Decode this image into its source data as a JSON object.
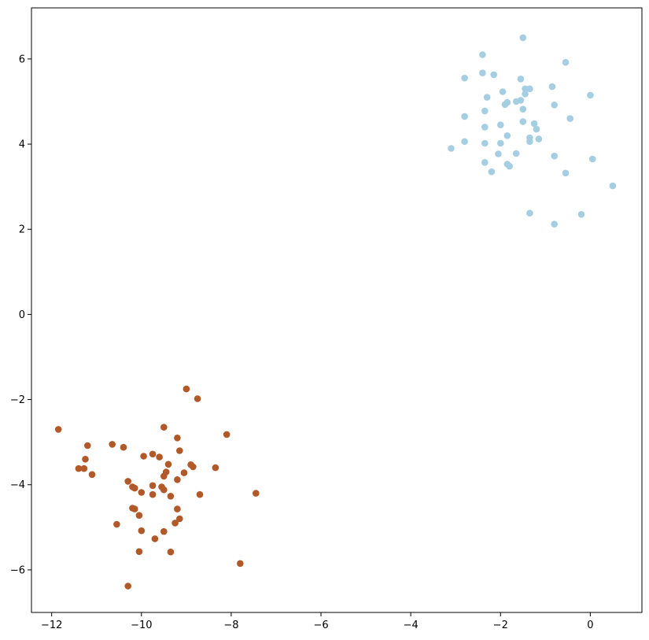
{
  "chart_data": {
    "type": "scatter",
    "title": "",
    "xlabel": "",
    "ylabel": "",
    "xlim": [
      -12.45,
      1.15
    ],
    "ylim": [
      -7.0,
      7.2
    ],
    "grid": false,
    "xticks": [
      -12,
      -10,
      -8,
      -6,
      -4,
      -2,
      0
    ],
    "yticks": [
      -6,
      -4,
      -2,
      0,
      2,
      4,
      6
    ],
    "series": [
      {
        "color": "#a6cee3",
        "points": [
          [
            -1.5,
            6.5
          ],
          [
            -2.4,
            6.1
          ],
          [
            -0.55,
            5.92
          ],
          [
            -2.4,
            5.67
          ],
          [
            -2.15,
            5.63
          ],
          [
            -2.8,
            5.55
          ],
          [
            -1.55,
            5.53
          ],
          [
            -1.45,
            5.3
          ],
          [
            -1.35,
            5.3
          ],
          [
            -0.85,
            5.35
          ],
          [
            -1.95,
            5.23
          ],
          [
            -1.45,
            5.18
          ],
          [
            -2.3,
            5.1
          ],
          [
            -1.55,
            5.03
          ],
          [
            -1.65,
            5.0
          ],
          [
            -1.85,
            4.98
          ],
          [
            -1.9,
            4.93
          ],
          [
            -0.8,
            4.92
          ],
          [
            0.0,
            5.15
          ],
          [
            -1.5,
            4.82
          ],
          [
            -2.35,
            4.78
          ],
          [
            -2.8,
            4.65
          ],
          [
            -1.5,
            4.53
          ],
          [
            -0.45,
            4.6
          ],
          [
            -1.25,
            4.48
          ],
          [
            -1.2,
            4.35
          ],
          [
            -2.35,
            4.4
          ],
          [
            -2.0,
            4.45
          ],
          [
            -1.85,
            4.2
          ],
          [
            -1.35,
            4.15
          ],
          [
            -1.15,
            4.12
          ],
          [
            -1.35,
            4.06
          ],
          [
            -2.8,
            4.06
          ],
          [
            -2.35,
            4.02
          ],
          [
            -2.0,
            4.02
          ],
          [
            -3.1,
            3.9
          ],
          [
            -2.05,
            3.77
          ],
          [
            -1.65,
            3.78
          ],
          [
            -0.8,
            3.72
          ],
          [
            0.05,
            3.65
          ],
          [
            -2.35,
            3.57
          ],
          [
            -1.85,
            3.53
          ],
          [
            -1.8,
            3.48
          ],
          [
            -2.2,
            3.35
          ],
          [
            -0.55,
            3.32
          ],
          [
            0.5,
            3.02
          ],
          [
            -1.35,
            2.38
          ],
          [
            -0.2,
            2.35
          ],
          [
            -0.8,
            2.12
          ]
        ]
      },
      {
        "color": "#b15928",
        "points": [
          [
            -9.0,
            -1.75
          ],
          [
            -8.75,
            -1.98
          ],
          [
            -11.85,
            -2.7
          ],
          [
            -9.5,
            -2.65
          ],
          [
            -8.1,
            -2.82
          ],
          [
            -9.2,
            -2.9
          ],
          [
            -10.65,
            -3.05
          ],
          [
            -11.2,
            -3.08
          ],
          [
            -10.4,
            -3.12
          ],
          [
            -9.15,
            -3.2
          ],
          [
            -9.75,
            -3.28
          ],
          [
            -9.95,
            -3.33
          ],
          [
            -9.6,
            -3.35
          ],
          [
            -11.25,
            -3.4
          ],
          [
            -9.4,
            -3.52
          ],
          [
            -8.9,
            -3.53
          ],
          [
            -8.85,
            -3.58
          ],
          [
            -11.4,
            -3.62
          ],
          [
            -11.28,
            -3.62
          ],
          [
            -8.35,
            -3.6
          ],
          [
            -9.45,
            -3.7
          ],
          [
            -9.05,
            -3.72
          ],
          [
            -11.1,
            -3.76
          ],
          [
            -9.5,
            -3.8
          ],
          [
            -9.2,
            -3.88
          ],
          [
            -10.3,
            -3.92
          ],
          [
            -9.75,
            -4.02
          ],
          [
            -9.55,
            -4.05
          ],
          [
            -10.2,
            -4.05
          ],
          [
            -10.15,
            -4.08
          ],
          [
            -9.5,
            -4.12
          ],
          [
            -10.0,
            -4.18
          ],
          [
            -7.45,
            -4.2
          ],
          [
            -9.75,
            -4.23
          ],
          [
            -8.7,
            -4.23
          ],
          [
            -9.35,
            -4.27
          ],
          [
            -10.2,
            -4.55
          ],
          [
            -10.15,
            -4.57
          ],
          [
            -9.2,
            -4.57
          ],
          [
            -10.05,
            -4.72
          ],
          [
            -9.15,
            -4.8
          ],
          [
            -9.25,
            -4.9
          ],
          [
            -10.55,
            -4.93
          ],
          [
            -10.0,
            -5.08
          ],
          [
            -9.5,
            -5.1
          ],
          [
            -9.7,
            -5.27
          ],
          [
            -10.05,
            -5.57
          ],
          [
            -9.35,
            -5.58
          ],
          [
            -7.8,
            -5.85
          ],
          [
            -10.3,
            -6.38
          ]
        ]
      }
    ]
  }
}
